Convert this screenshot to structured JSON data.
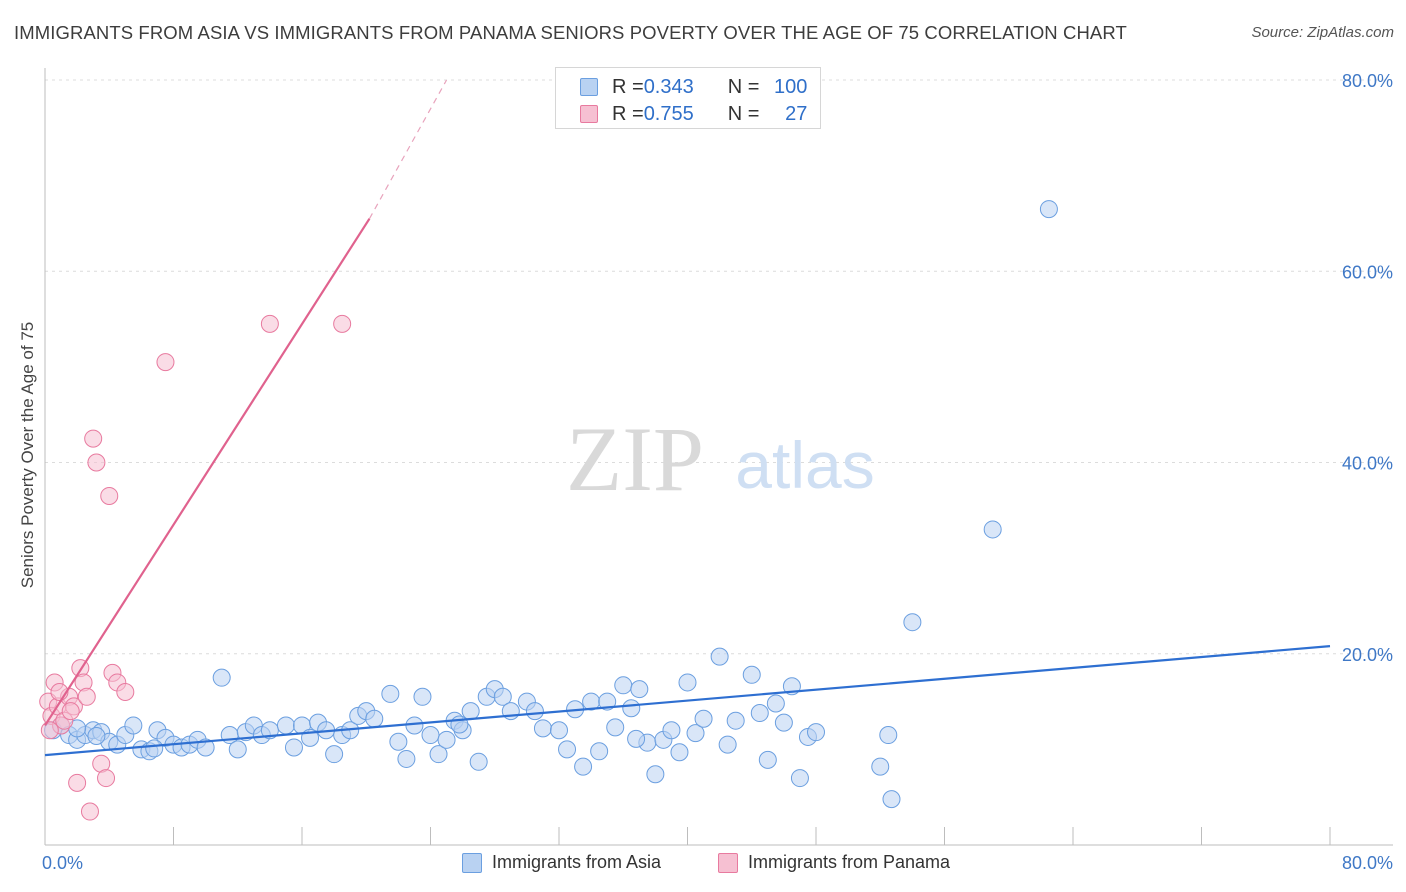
{
  "header": {
    "title": "IMMIGRANTS FROM ASIA VS IMMIGRANTS FROM PANAMA SENIORS POVERTY OVER THE AGE OF 75 CORRELATION CHART",
    "source": "Source: ZipAtlas.com"
  },
  "watermark": {
    "zip": "ZIP",
    "atlas": "atlas"
  },
  "legend": {
    "rows": [
      {
        "r_label": "R = ",
        "r_value": "0.343",
        "n_label": "N = ",
        "n_value": "100"
      },
      {
        "r_label": "R = ",
        "r_value": "0.755",
        "n_label": "N = ",
        "n_value": "27"
      }
    ]
  },
  "chart_data": {
    "type": "scatter",
    "title": "IMMIGRANTS FROM ASIA VS IMMIGRANTS FROM PANAMA SENIORS POVERTY OVER THE AGE OF 75 CORRELATION CHART",
    "xlabel": "",
    "ylabel": "Seniors Poverty Over the Age of 75",
    "xlim": [
      0,
      80
    ],
    "ylim": [
      0,
      80
    ],
    "x_tick_labels": [
      "0.0%",
      "80.0%"
    ],
    "y_ticks": [
      20,
      40,
      60,
      80
    ],
    "y_tick_labels": [
      "20.0%",
      "40.0%",
      "60.0%",
      "80.0%"
    ],
    "grid": true,
    "legend_position": "top-center",
    "series": [
      {
        "name": "Immigrants from Asia",
        "color": "#6b9fe0",
        "fill": "#b9d2f2",
        "trend": {
          "x1": 0,
          "y1": 9.4,
          "x2": 80,
          "y2": 20.8
        },
        "points": [
          [
            0.5,
            12
          ],
          [
            1,
            12.5
          ],
          [
            1.5,
            11.5
          ],
          [
            2,
            11
          ],
          [
            2.5,
            11.5
          ],
          [
            3,
            12
          ],
          [
            3.5,
            11.8
          ],
          [
            4,
            10.8
          ],
          [
            4.5,
            10.5
          ],
          [
            5,
            11.5
          ],
          [
            5.5,
            12.5
          ],
          [
            6,
            10
          ],
          [
            6.5,
            9.8
          ],
          [
            7,
            12
          ],
          [
            7.5,
            11.2
          ],
          [
            8,
            10.5
          ],
          [
            8.5,
            10.2
          ],
          [
            9,
            10.5
          ],
          [
            9.5,
            11
          ],
          [
            10,
            10.2
          ],
          [
            11,
            17.5
          ],
          [
            11.5,
            11.5
          ],
          [
            12,
            10
          ],
          [
            12.5,
            11.8
          ],
          [
            13,
            12.5
          ],
          [
            13.5,
            11.5
          ],
          [
            14,
            12
          ],
          [
            15,
            12.5
          ],
          [
            15.5,
            10.2
          ],
          [
            16,
            12.5
          ],
          [
            16.5,
            11.2
          ],
          [
            17,
            12.8
          ],
          [
            17.5,
            12
          ],
          [
            18,
            9.5
          ],
          [
            18.5,
            11.5
          ],
          [
            19,
            12
          ],
          [
            19.5,
            13.5
          ],
          [
            20,
            14
          ],
          [
            20.5,
            13.2
          ],
          [
            21.5,
            15.8
          ],
          [
            22,
            10.8
          ],
          [
            22.5,
            9
          ],
          [
            23,
            12.5
          ],
          [
            23.5,
            15.5
          ],
          [
            24,
            11.5
          ],
          [
            24.5,
            9.5
          ],
          [
            25,
            11
          ],
          [
            25.5,
            13
          ],
          [
            26,
            12
          ],
          [
            26.5,
            14
          ],
          [
            27,
            8.7
          ],
          [
            27.5,
            15.5
          ],
          [
            28,
            16.3
          ],
          [
            28.5,
            15.5
          ],
          [
            29,
            14
          ],
          [
            30,
            15
          ],
          [
            30.5,
            14
          ],
          [
            31,
            12.2
          ],
          [
            32,
            12
          ],
          [
            32.5,
            10
          ],
          [
            33,
            14.2
          ],
          [
            33.5,
            8.2
          ],
          [
            34,
            15
          ],
          [
            34.5,
            9.8
          ],
          [
            35,
            15
          ],
          [
            35.5,
            12.3
          ],
          [
            36,
            16.7
          ],
          [
            36.5,
            14.3
          ],
          [
            37,
            16.3
          ],
          [
            37.5,
            10.7
          ],
          [
            38,
            7.4
          ],
          [
            38.5,
            11
          ],
          [
            39,
            12
          ],
          [
            39.5,
            9.7
          ],
          [
            40,
            17
          ],
          [
            40.5,
            11.7
          ],
          [
            41,
            13.2
          ],
          [
            42,
            19.7
          ],
          [
            42.5,
            10.5
          ],
          [
            43,
            13
          ],
          [
            44,
            17.8
          ],
          [
            44.5,
            13.8
          ],
          [
            45,
            8.9
          ],
          [
            45.5,
            14.8
          ],
          [
            46,
            12.8
          ],
          [
            46.5,
            16.6
          ],
          [
            47,
            7
          ],
          [
            47.5,
            11.3
          ],
          [
            48,
            11.8
          ],
          [
            52,
            8.2
          ],
          [
            52.5,
            11.5
          ],
          [
            52.7,
            4.8
          ],
          [
            54,
            23.3
          ],
          [
            59,
            33
          ],
          [
            62.5,
            66.5
          ],
          [
            2,
            12.2
          ],
          [
            3.2,
            11.4
          ],
          [
            6.8,
            10.1
          ],
          [
            25.8,
            12.6
          ],
          [
            36.8,
            11.1
          ]
        ]
      },
      {
        "name": "Immigrants from Panama",
        "color": "#e87a9f",
        "fill": "#f6c0d2",
        "trend": {
          "x1": 0,
          "y1": 12.5,
          "x2": 20.2,
          "y2": 65.5
        },
        "trend_dashed": {
          "x1": 20.2,
          "y1": 65.5,
          "x2": 25,
          "y2": 80
        },
        "points": [
          [
            0.2,
            15
          ],
          [
            0.4,
            13.5
          ],
          [
            0.6,
            17
          ],
          [
            0.8,
            14.5
          ],
          [
            1,
            12.5
          ],
          [
            1.2,
            13
          ],
          [
            1.5,
            15.5
          ],
          [
            1.8,
            14.5
          ],
          [
            2,
            6.5
          ],
          [
            2.2,
            18.5
          ],
          [
            2.4,
            17
          ],
          [
            2.6,
            15.5
          ],
          [
            2.8,
            3.5
          ],
          [
            3,
            42.5
          ],
          [
            3.2,
            40
          ],
          [
            3.5,
            8.5
          ],
          [
            3.8,
            7
          ],
          [
            4,
            36.5
          ],
          [
            4.2,
            18
          ],
          [
            4.5,
            17
          ],
          [
            5,
            16
          ],
          [
            7.5,
            50.5
          ],
          [
            14,
            54.5
          ],
          [
            18.5,
            54.5
          ],
          [
            0.3,
            12
          ],
          [
            0.9,
            16
          ],
          [
            1.6,
            14
          ]
        ]
      }
    ]
  },
  "bottom_legend": {
    "items": [
      {
        "label": "Immigrants from Asia"
      },
      {
        "label": "Immigrants from Panama"
      }
    ]
  }
}
